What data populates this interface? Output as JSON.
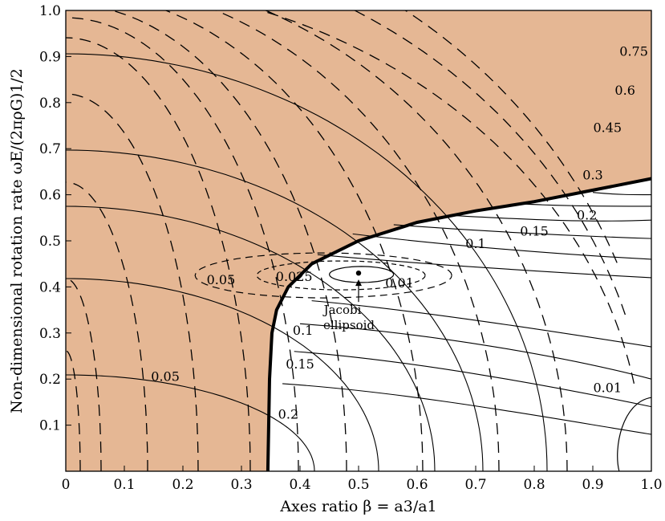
{
  "chart_data": {
    "type": "contour",
    "xlabel": "Axes ratio β = a3/a1",
    "ylabel": "Non-dimensional rotation rate ωE/(2πρG)1/2",
    "xlim": [
      0,
      1
    ],
    "ylim": [
      0,
      1
    ],
    "x_ticks": [
      "0",
      "0.1",
      "0.2",
      "0.3",
      "0.4",
      "0.5",
      "0.6",
      "0.7",
      "0.8",
      "0.9",
      "1.0"
    ],
    "y_ticks": [
      "0.1",
      "0.2",
      "0.3",
      "0.4",
      "0.5",
      "0.6",
      "0.7",
      "0.8",
      "0.9",
      "1.0"
    ],
    "shaded_region_color": "#E5B794",
    "boundary": {
      "x": [
        0.345,
        0.348,
        0.352,
        0.36,
        0.38,
        0.42,
        0.5,
        0.6,
        0.7,
        0.8,
        0.9,
        1.0
      ],
      "y": [
        0.0,
        0.2,
        0.3,
        0.35,
        0.4,
        0.45,
        0.5,
        0.54,
        0.565,
        0.585,
        0.61,
        0.635
      ]
    },
    "dashed_contour_labels": [
      {
        "text": "0.75",
        "x": 0.97,
        "y": 0.91
      },
      {
        "text": "0.6",
        "x": 0.955,
        "y": 0.826
      },
      {
        "text": "0.45",
        "x": 0.925,
        "y": 0.745
      },
      {
        "text": "0.3",
        "x": 0.9,
        "y": 0.642
      },
      {
        "text": "0.05",
        "x": 0.265,
        "y": 0.415
      },
      {
        "text": "0.025",
        "x": 0.39,
        "y": 0.422
      },
      {
        "text": "0.1",
        "x": 0.405,
        "y": 0.305
      },
      {
        "text": "0.15",
        "x": 0.4,
        "y": 0.232
      },
      {
        "text": "0.2",
        "x": 0.38,
        "y": 0.123
      },
      {
        "text": "0.05",
        "x": 0.17,
        "y": 0.205
      }
    ],
    "solid_contour_labels": [
      {
        "text": "0.01",
        "x": 0.57,
        "y": 0.408
      },
      {
        "text": "0.1",
        "x": 0.7,
        "y": 0.493
      },
      {
        "text": "0.15",
        "x": 0.8,
        "y": 0.52
      },
      {
        "text": "0.2",
        "x": 0.89,
        "y": 0.555
      },
      {
        "text": "0.01",
        "x": 0.925,
        "y": 0.18
      }
    ],
    "jacobi_point": {
      "x": 0.5,
      "y": 0.43
    },
    "annotation": [
      "Jacobi",
      "ellipsoid"
    ]
  }
}
